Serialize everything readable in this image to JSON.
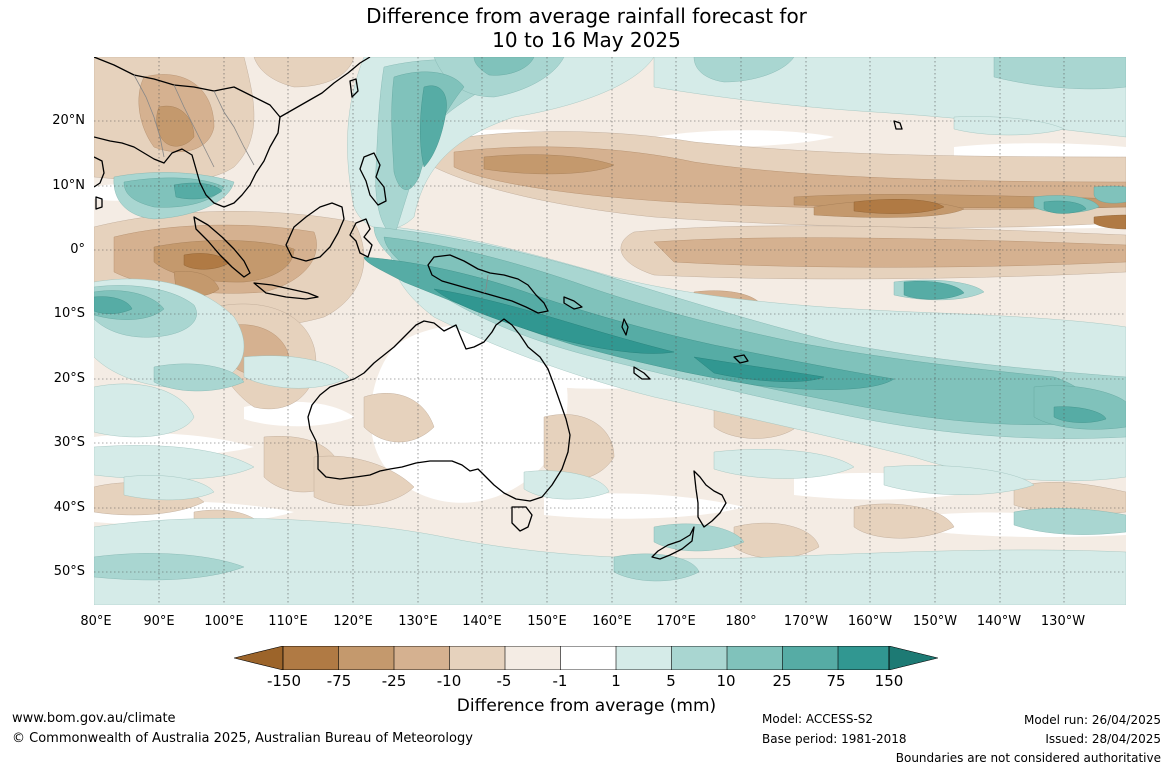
{
  "title": {
    "line1": "Difference from average rainfall forecast for",
    "line2": "10 to 16 May 2025"
  },
  "lat_labels": [
    "20°N",
    "10°N",
    "0°",
    "10°S",
    "20°S",
    "30°S",
    "40°S",
    "50°S"
  ],
  "lon_labels": [
    "80°E",
    "90°E",
    "100°E",
    "110°E",
    "120°E",
    "130°E",
    "140°E",
    "150°E",
    "160°E",
    "170°E",
    "180°",
    "170°W",
    "160°W",
    "150°W",
    "140°W",
    "130°W"
  ],
  "colorbar": {
    "label": "Difference from average (mm)",
    "ticks": [
      "-150",
      "-75",
      "-25",
      "-10",
      "-5",
      "-1",
      "1",
      "5",
      "10",
      "25",
      "75",
      "150"
    ],
    "colors": {
      "below_min": "#9c642a",
      "c1": "#b07a44",
      "c2": "#c4996d",
      "c3": "#d5b190",
      "c4": "#e6d2bd",
      "c5": "#f4ece4",
      "c6": "#ffffff",
      "c7": "#d5ebe8",
      "c8": "#a9d6d1",
      "c9": "#80c2bb",
      "c10": "#56aca5",
      "c11": "#319791",
      "above_max": "#1d7a74"
    }
  },
  "footer": {
    "website": "www.bom.gov.au/climate",
    "copyright": "© Commonwealth of Australia 2025, Australian Bureau of Meteorology",
    "model": "Model: ACCESS-S2",
    "base_period": "Base period: 1981-2018",
    "model_run": "Model run: 26/04/2025",
    "issued": "Issued: 28/04/2025",
    "disclaimer": "Boundaries are not considered authoritative"
  }
}
